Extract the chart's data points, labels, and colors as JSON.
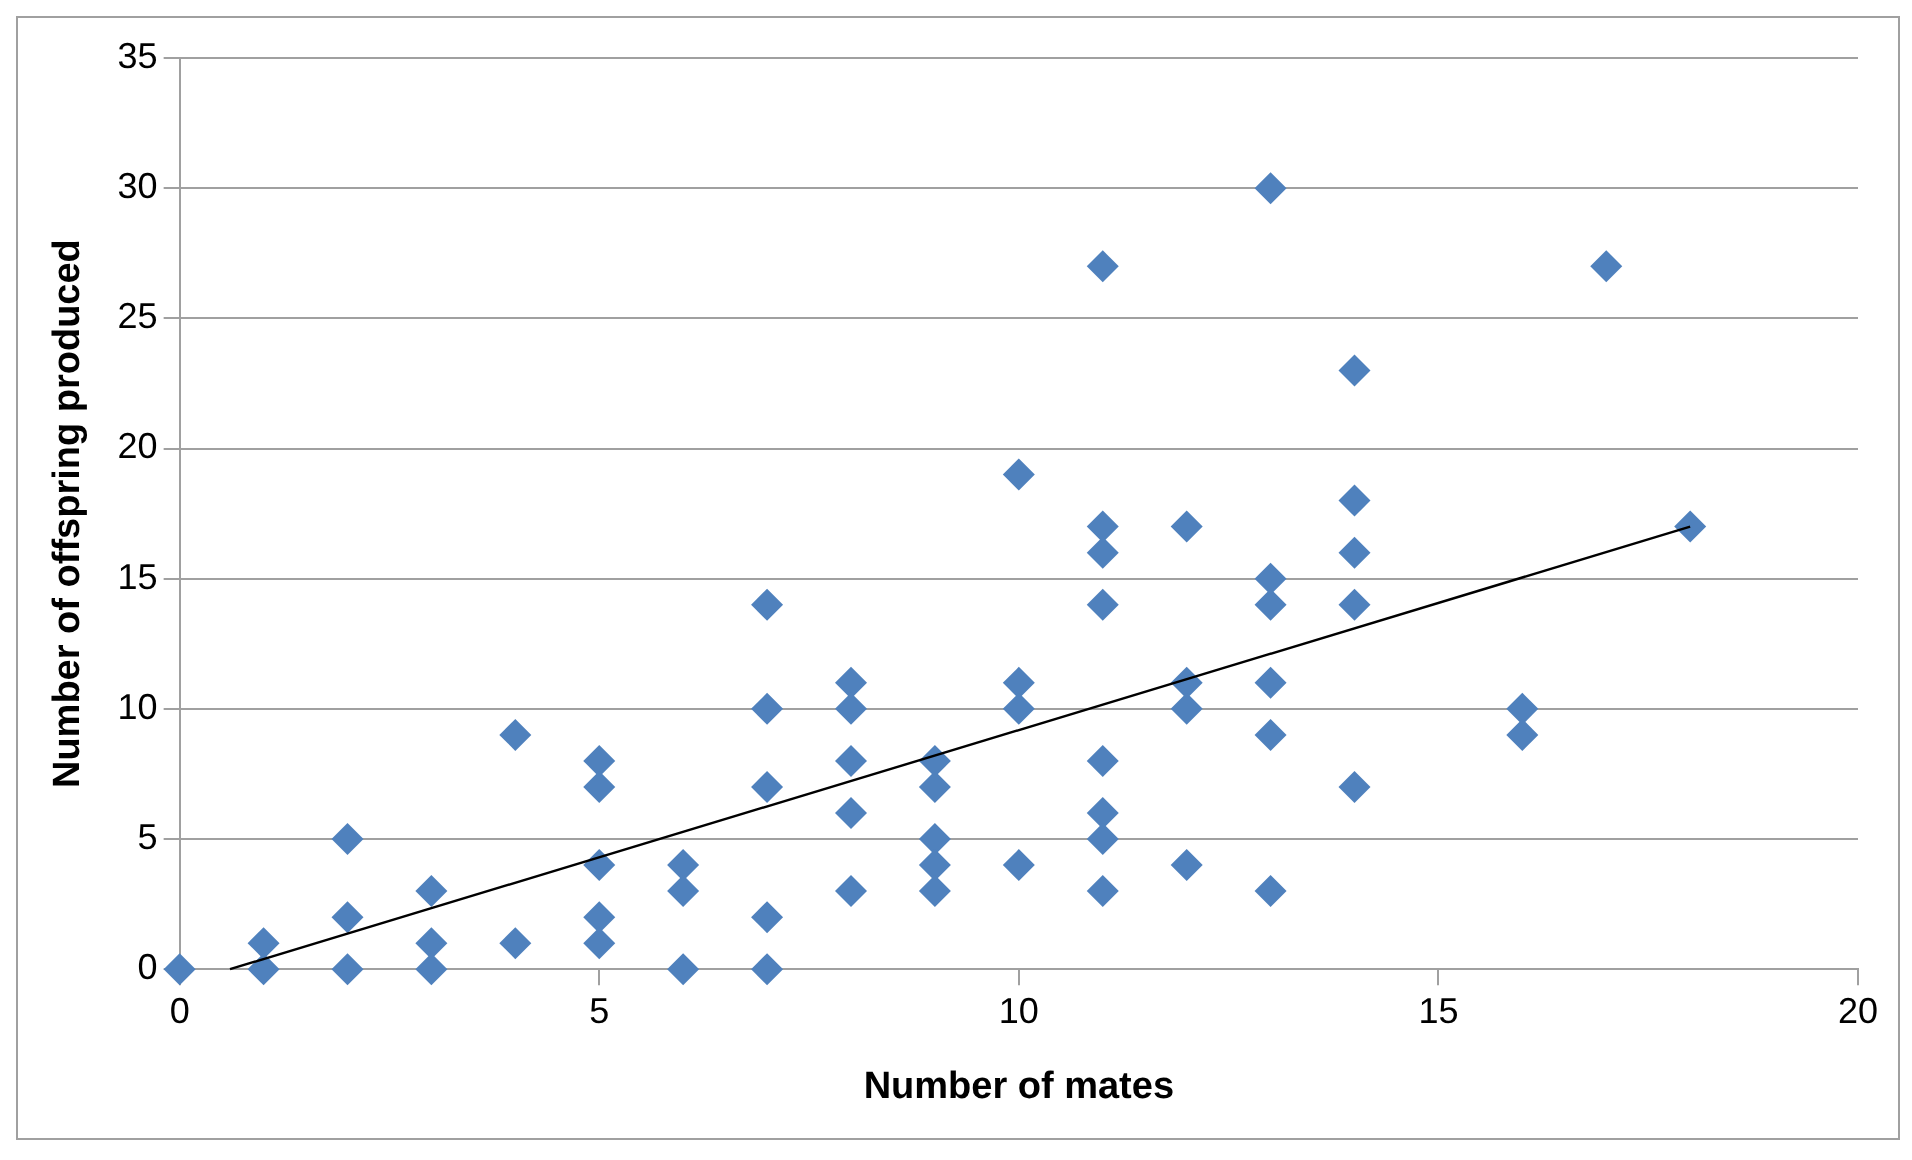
{
  "chart_data": {
    "type": "scatter",
    "xlabel": "Number of mates",
    "ylabel": "Number of offspring produced",
    "xlim": [
      0,
      20
    ],
    "xticks": [
      0,
      5,
      10,
      15,
      20
    ],
    "ylim": [
      0,
      35
    ],
    "yticks": [
      0,
      5,
      10,
      15,
      20,
      25,
      30,
      35
    ],
    "grid": "y",
    "legend": false,
    "marker": "diamond",
    "series": [
      {
        "color": "#4f81bd",
        "x": [
          0,
          1,
          1,
          2,
          2,
          2,
          3,
          3,
          3,
          4,
          4,
          5,
          5,
          5,
          5,
          5,
          6,
          6,
          6,
          7,
          7,
          7,
          7,
          7,
          8,
          8,
          8,
          8,
          8,
          9,
          9,
          9,
          9,
          9,
          10,
          10,
          10,
          10,
          11,
          11,
          11,
          11,
          11,
          11,
          11,
          11,
          12,
          12,
          12,
          12,
          13,
          13,
          13,
          13,
          13,
          13,
          14,
          14,
          14,
          14,
          14,
          16,
          16,
          17,
          18
        ],
        "values": [
          0,
          1,
          0,
          5,
          2,
          0,
          3,
          1,
          0,
          9,
          1,
          8,
          7,
          4,
          2,
          1,
          4,
          3,
          0,
          14,
          10,
          7,
          2,
          0,
          11,
          10,
          8,
          6,
          3,
          8,
          7,
          5,
          4,
          3,
          19,
          11,
          10,
          4,
          27,
          17,
          16,
          14,
          8,
          6,
          5,
          3,
          17,
          11,
          10,
          4,
          30,
          15,
          14,
          11,
          9,
          3,
          23,
          18,
          16,
          14,
          7,
          10,
          9,
          27,
          17
        ]
      },
      {
        "type": "line",
        "color": "#000000",
        "marker": "none",
        "x": [
          0.6,
          18
        ],
        "values": [
          0,
          17
        ]
      }
    ]
  }
}
